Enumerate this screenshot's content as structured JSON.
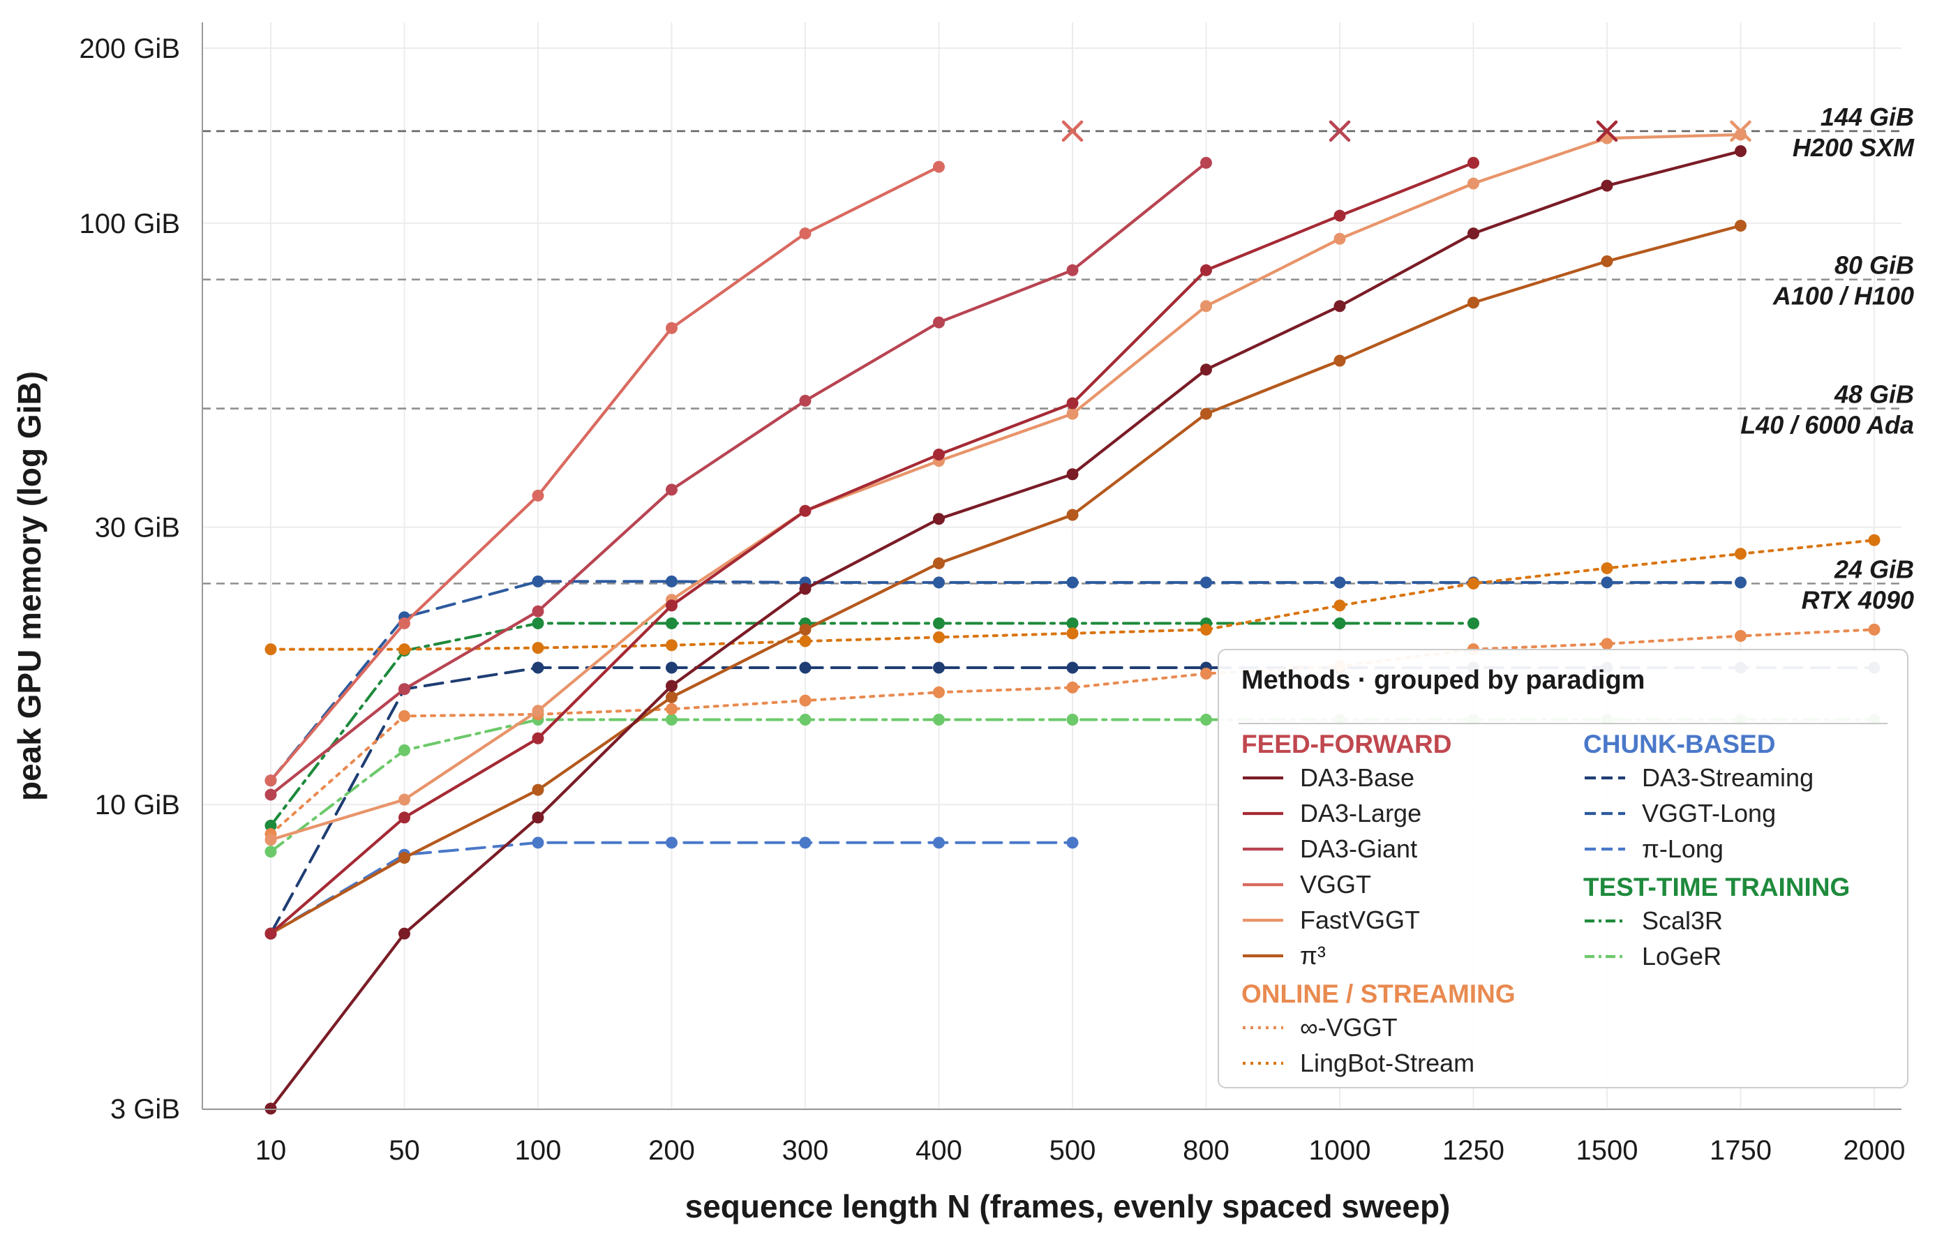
{
  "chart_data": {
    "type": "line",
    "xlabel": "sequence length N (frames, evenly spaced sweep)",
    "ylabel": "peak GPU memory (log GiB)",
    "x_scale": "categorical",
    "y_scale": "log",
    "ylim": [
      3,
      230
    ],
    "categories": [
      "10",
      "50",
      "100",
      "200",
      "300",
      "400",
      "500",
      "800",
      "1000",
      "1250",
      "1500",
      "1750",
      "2000"
    ],
    "y_ticks": [
      {
        "value": 3,
        "label": "3 GiB"
      },
      {
        "value": 10,
        "label": "10 GiB"
      },
      {
        "value": 30,
        "label": "30 GiB"
      },
      {
        "value": 100,
        "label": "100 GiB"
      },
      {
        "value": 200,
        "label": "200 GiB"
      }
    ],
    "grid": true,
    "legend_position": "bottom-right",
    "reference_lines": [
      {
        "value": 144,
        "label_line1": "144 GiB",
        "label_line2": "H200 SXM"
      },
      {
        "value": 80,
        "label_line1": "80 GiB",
        "label_line2": "A100 / H100"
      },
      {
        "value": 48,
        "label_line1": "48 GiB",
        "label_line2": "L40 / 6000 Ada"
      },
      {
        "value": 24,
        "label_line1": "24 GiB",
        "label_line2": "RTX 4090"
      }
    ],
    "oom_markers": [
      {
        "x": "500",
        "y": 144,
        "color": "#d9695f"
      },
      {
        "x": "1000",
        "y": 144,
        "color": "#b84452"
      },
      {
        "x": "1500",
        "y": 144,
        "color": "#a52a35"
      },
      {
        "x": "1750",
        "y": 144,
        "color": "#e8946a"
      }
    ],
    "legend_title": "Methods · grouped by paradigm",
    "groups": [
      {
        "name": "FEED-FORWARD",
        "color": "#c0474f",
        "column": 0
      },
      {
        "name": "ONLINE / STREAMING",
        "color": "#e98a50",
        "column": 0
      },
      {
        "name": "CHUNK-BASED",
        "color": "#4a78c9",
        "column": 1
      },
      {
        "name": "TEST-TIME TRAINING",
        "color": "#1e8a3c",
        "column": 1
      }
    ],
    "series": [
      {
        "name": "DA3-Base",
        "group": "FEED-FORWARD",
        "color": "#7a1c26",
        "dash": "solid",
        "x": [
          "10",
          "50",
          "100",
          "200",
          "300",
          "400",
          "500",
          "800",
          "1000",
          "1250",
          "1500",
          "1750"
        ],
        "values": [
          3,
          6,
          9.5,
          16,
          23.5,
          31,
          37,
          56,
          72,
          96,
          116,
          133
        ]
      },
      {
        "name": "DA3-Large",
        "group": "FEED-FORWARD",
        "color": "#a52a35",
        "dash": "solid",
        "x": [
          "10",
          "50",
          "100",
          "200",
          "300",
          "400",
          "500",
          "800",
          "1000",
          "1250"
        ],
        "values": [
          6,
          9.5,
          13,
          22,
          32,
          40,
          49,
          83,
          103,
          127
        ]
      },
      {
        "name": "DA3-Giant",
        "group": "FEED-FORWARD",
        "color": "#b84452",
        "dash": "solid",
        "x": [
          "10",
          "50",
          "100",
          "200",
          "300",
          "400",
          "500",
          "800"
        ],
        "values": [
          10.4,
          15.8,
          21.5,
          34.8,
          49.5,
          67.5,
          83,
          127
        ]
      },
      {
        "name": "VGGT",
        "group": "FEED-FORWARD",
        "color": "#d9695f",
        "dash": "solid",
        "x": [
          "10",
          "50",
          "100",
          "200",
          "300",
          "400"
        ],
        "values": [
          11,
          20.5,
          34,
          66,
          96,
          125
        ]
      },
      {
        "name": "FastVGGT",
        "group": "FEED-FORWARD",
        "color": "#e8946a",
        "dash": "solid",
        "x": [
          "10",
          "50",
          "100",
          "200",
          "300",
          "400",
          "500",
          "800",
          "1000",
          "1250",
          "1500",
          "1750"
        ],
        "values": [
          8.7,
          10.2,
          14.5,
          22.5,
          32,
          39,
          47,
          72,
          94,
          117,
          140,
          142
        ]
      },
      {
        "name": "π³",
        "group": "FEED-FORWARD",
        "color": "#b5591d",
        "dash": "solid",
        "x": [
          "10",
          "50",
          "100",
          "200",
          "300",
          "400",
          "500",
          "800",
          "1000",
          "1250",
          "1500",
          "1750"
        ],
        "values": [
          6,
          8.1,
          10.6,
          15.3,
          20,
          26,
          31.5,
          47,
          58,
          73,
          86,
          99
        ]
      },
      {
        "name": "∞-VGGT",
        "group": "ONLINE / STREAMING",
        "color": "#e98a50",
        "dash": "dotted",
        "x": [
          "10",
          "50",
          "100",
          "200",
          "300",
          "400",
          "500",
          "800",
          "1000",
          "1250",
          "1500",
          "1750",
          "2000"
        ],
        "values": [
          8.9,
          14.2,
          14.3,
          14.6,
          15.1,
          15.6,
          15.9,
          16.8,
          17.3,
          18.5,
          18.9,
          19.5,
          20
        ]
      },
      {
        "name": "LingBot-Stream",
        "group": "ONLINE / STREAMING",
        "color": "#d9740f",
        "dash": "dotted",
        "x": [
          "10",
          "50",
          "100",
          "200",
          "300",
          "400",
          "500",
          "800",
          "1000",
          "1250",
          "1500",
          "1750",
          "2000"
        ],
        "values": [
          18.5,
          18.5,
          18.6,
          18.8,
          19.1,
          19.4,
          19.7,
          20,
          22,
          24,
          25.5,
          27,
          28.5
        ]
      },
      {
        "name": "DA3-Streaming",
        "group": "CHUNK-BASED",
        "color": "#1f3d73",
        "dash": "dashed",
        "x": [
          "10",
          "50",
          "100",
          "200",
          "300",
          "400",
          "500",
          "800",
          "1000",
          "1250",
          "1500",
          "1750",
          "2000"
        ],
        "values": [
          6,
          15.8,
          17.2,
          17.2,
          17.2,
          17.2,
          17.2,
          17.2,
          17.2,
          17.2,
          17.2,
          17.2,
          17.2
        ]
      },
      {
        "name": "VGGT-Long",
        "group": "CHUNK-BASED",
        "color": "#2d5a9e",
        "dash": "dashed",
        "x": [
          "10",
          "50",
          "100",
          "200",
          "300",
          "400",
          "500",
          "800",
          "1000",
          "1250",
          "1500",
          "1750"
        ],
        "values": [
          11,
          21,
          24.2,
          24.2,
          24.1,
          24.1,
          24.1,
          24.1,
          24.1,
          24.1,
          24.1,
          24.1
        ]
      },
      {
        "name": "π-Long",
        "group": "CHUNK-BASED",
        "color": "#4a78c9",
        "dash": "dashed",
        "x": [
          "10",
          "50",
          "100",
          "200",
          "300",
          "400",
          "500"
        ],
        "values": [
          6,
          8.2,
          8.6,
          8.6,
          8.6,
          8.6,
          8.6
        ]
      },
      {
        "name": "Scal3R",
        "group": "TEST-TIME TRAINING",
        "color": "#1e8a3c",
        "dash": "dashdot",
        "x": [
          "10",
          "50",
          "100",
          "200",
          "300",
          "400",
          "500",
          "800",
          "1000",
          "1250"
        ],
        "values": [
          9.2,
          18.4,
          20.5,
          20.5,
          20.5,
          20.5,
          20.5,
          20.5,
          20.5,
          20.5
        ]
      },
      {
        "name": "LoGeR",
        "group": "TEST-TIME TRAINING",
        "color": "#6cc96a",
        "dash": "dashdot",
        "x": [
          "10",
          "50",
          "100",
          "200",
          "300",
          "400",
          "500",
          "800",
          "1000",
          "1250",
          "1500",
          "1750",
          "2000"
        ],
        "values": [
          8.3,
          12.4,
          14,
          14,
          14,
          14,
          14,
          14,
          14,
          14,
          14,
          14,
          14
        ]
      }
    ]
  }
}
